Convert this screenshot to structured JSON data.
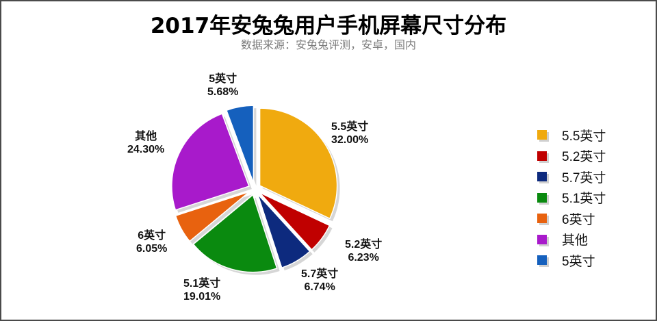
{
  "chart_data": {
    "type": "pie",
    "title": "2017年安兔兔用户手机屏幕尺寸分布",
    "subtitle": "数据来源：安兔兔评测，安卓，国内",
    "start_angle": "12 o'clock, clockwise",
    "exploded": true,
    "legend_position": "right",
    "slices": [
      {
        "label": "5.5英寸",
        "value": 32.0,
        "display": "32.00%",
        "color": "#F0AA0F"
      },
      {
        "label": "5.2英寸",
        "value": 6.23,
        "display": "6.23%",
        "color": "#C00000"
      },
      {
        "label": "5.7英寸",
        "value": 6.74,
        "display": "6.74%",
        "color": "#0D2A7E"
      },
      {
        "label": "5.1英寸",
        "value": 19.01,
        "display": "19.01%",
        "color": "#0A8A0F"
      },
      {
        "label": "6英寸",
        "value": 6.05,
        "display": "6.05%",
        "color": "#E8620F"
      },
      {
        "label": "其他",
        "value": 24.3,
        "display": "24.30%",
        "color": "#A81ACB"
      },
      {
        "label": "5英寸",
        "value": 5.68,
        "display": "5.68%",
        "color": "#1560BD"
      }
    ]
  },
  "header": {
    "title": "2017年安兔兔用户手机屏幕尺寸分布",
    "subtitle": "数据来源：安兔兔评测，安卓，国内"
  },
  "labels": [
    {
      "name": "5.5英寸",
      "pct": "32.00%"
    },
    {
      "name": "5.2英寸",
      "pct": "6.23%"
    },
    {
      "name": "5.7英寸",
      "pct": "6.74%"
    },
    {
      "name": "5.1英寸",
      "pct": "19.01%"
    },
    {
      "name": "6英寸",
      "pct": "6.05%"
    },
    {
      "name": "其他",
      "pct": "24.30%"
    },
    {
      "name": "5英寸",
      "pct": "5.68%"
    }
  ],
  "legend": [
    {
      "label": "5.5英寸",
      "color": "#F0AA0F"
    },
    {
      "label": "5.2英寸",
      "color": "#C00000"
    },
    {
      "label": "5.7英寸",
      "color": "#0D2A7E"
    },
    {
      "label": "5.1英寸",
      "color": "#0A8A0F"
    },
    {
      "label": "6英寸",
      "color": "#E8620F"
    },
    {
      "label": "其他",
      "color": "#A81ACB"
    },
    {
      "label": "5英寸",
      "color": "#1560BD"
    }
  ]
}
